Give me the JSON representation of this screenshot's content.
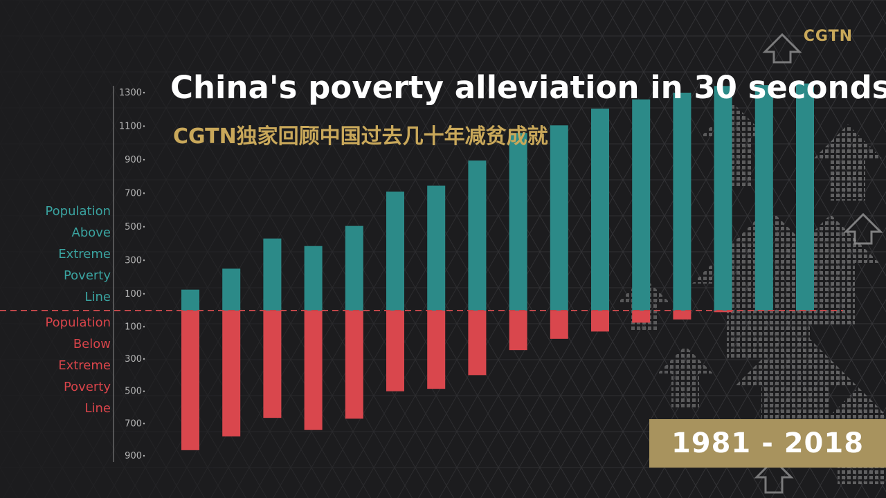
{
  "brand": {
    "logo": "CGTN"
  },
  "header": {
    "title": "China's poverty alleviation in 30 seconds",
    "subtitle": "CGTN独家回顾中国过去几十年减贫成就"
  },
  "labels": {
    "above": [
      "Population",
      "Above",
      "Extreme",
      "Poverty",
      "Line"
    ],
    "below": [
      "Population",
      "Below",
      "Extreme",
      "Poverty",
      "Line"
    ]
  },
  "period": "1981 - 2018",
  "colors": {
    "above": "#2c8a88",
    "below": "#d9474d",
    "gold": "#c9a85a",
    "background": "#1c1c1e"
  },
  "chart_data": {
    "type": "bar",
    "title": "China's poverty alleviation in 30 seconds",
    "yticks_above": [
      "100",
      "300",
      "500",
      "700",
      "900",
      "1100",
      "1300"
    ],
    "yticks_below": [
      "100",
      "300",
      "500",
      "700",
      "900"
    ],
    "ylim": [
      -900,
      1300
    ],
    "series": [
      {
        "name": "Population Above Extreme Poverty Line",
        "values": [
          125,
          250,
          430,
          385,
          505,
          710,
          745,
          895,
          1060,
          1105,
          1205,
          1260,
          1300,
          1340,
          1345,
          1355
        ]
      },
      {
        "name": "Population Below Extreme Poverty Line",
        "values": [
          -865,
          -780,
          -665,
          -740,
          -670,
          -500,
          -485,
          -400,
          -245,
          -175,
          -130,
          -75,
          -55,
          -10,
          -3,
          -3
        ]
      }
    ]
  }
}
